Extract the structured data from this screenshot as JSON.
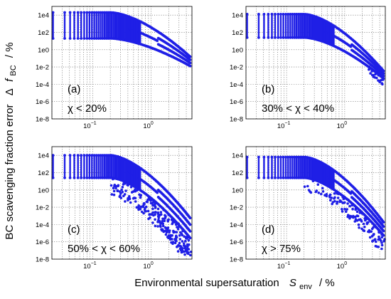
{
  "chart_data": {
    "type": "scatter",
    "xlabel_main": "Environmental supersaturation",
    "xlabel_symbol": "S",
    "xlabel_sub": "env",
    "xlabel_unit": "/  %",
    "ylabel_main": "BC scavenging fraction error",
    "ylabel_delta": "Δ",
    "ylabel_symbol": "f",
    "ylabel_sub": "BC",
    "ylabel_unit": "/  %",
    "x_scale": "log",
    "y_scale": "log",
    "xlim": [
      0.02,
      5
    ],
    "ylim": [
      1e-08,
      100000.0
    ],
    "x_tick_labels": [
      {
        "value": 0.1,
        "base": "10",
        "exp": "−1"
      },
      {
        "value": 1,
        "base": "10",
        "exp": "0"
      }
    ],
    "y_tick_labels": [
      {
        "value": 10000.0,
        "label": "1e4"
      },
      {
        "value": 100.0,
        "label": "1e2"
      },
      {
        "value": 1.0,
        "label": "1e0"
      },
      {
        "value": 0.01,
        "label": "1e-2"
      },
      {
        "value": 0.0001,
        "label": "1e-4"
      },
      {
        "value": 1e-06,
        "label": "1e-6"
      },
      {
        "value": 1e-08,
        "label": "1e-8"
      }
    ],
    "grid": true,
    "marker_color": "#1f1fe6",
    "panels": [
      {
        "id": "a",
        "label": "(a)",
        "range_text": "χ < 20%",
        "upper_max": 4.3,
        "upper_min": 1.3,
        "tail_upper": -1.0,
        "tail_lower": -2.0,
        "noise_depth": 0.3,
        "noise_prob": 0.0,
        "noise_xstart": 2.0
      },
      {
        "id": "b",
        "label": "(b)",
        "range_text": "30% < χ < 40%",
        "upper_max": 4.1,
        "upper_min": 1.4,
        "tail_upper": -2.7,
        "tail_lower": -3.5,
        "noise_depth": 0.6,
        "noise_prob": 0.02,
        "noise_xstart": 2.5
      },
      {
        "id": "c",
        "label": "(c)",
        "range_text": "50% < χ < 60%",
        "upper_max": 4.0,
        "upper_min": 1.4,
        "tail_upper": -3.5,
        "tail_lower": -5.8,
        "noise_depth": 2.2,
        "noise_prob": 0.09,
        "noise_xstart": 0.2
      },
      {
        "id": "d",
        "label": "(d)",
        "range_text": "χ > 75%",
        "upper_max": 3.8,
        "upper_min": 1.4,
        "tail_upper": -4.0,
        "tail_lower": -5.5,
        "noise_depth": 1.6,
        "noise_prob": 0.05,
        "noise_xstart": 0.2
      }
    ]
  }
}
